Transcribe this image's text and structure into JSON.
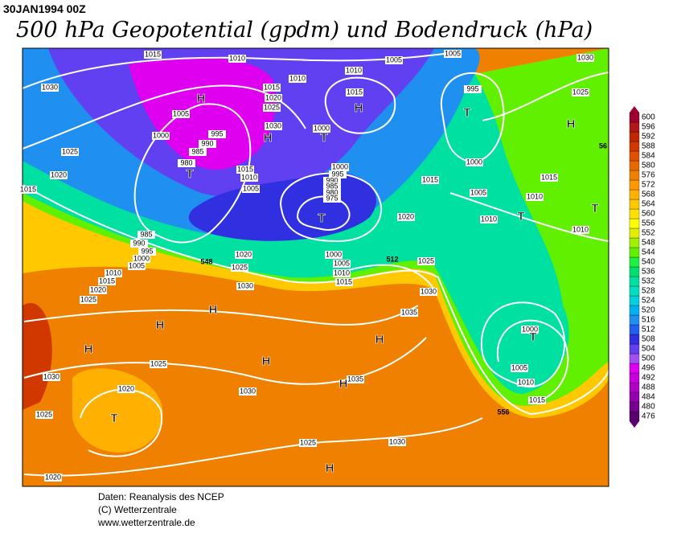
{
  "header": {
    "date": "30JAN1994 00Z",
    "title": "500 hPa Geopotential (gpdm) und Bodendruck (hPa)"
  },
  "map": {
    "isobar_labels": [
      1015,
      1010,
      1005,
      1005,
      1030,
      1010,
      1010,
      1030,
      1015,
      1020,
      1025,
      995,
      1025,
      1015,
      1005,
      1030,
      1000,
      995,
      1000,
      990,
      985,
      1025,
      980,
      1015,
      1010,
      1000,
      1000,
      1020,
      1015,
      995,
      990,
      985,
      980,
      975,
      1005,
      1015,
      1005,
      1010,
      1015,
      1020,
      1010,
      1010,
      985,
      990,
      995,
      1000,
      1005,
      1010,
      1015,
      1020,
      1025,
      1020,
      1025,
      1030,
      1000,
      1005,
      1010,
      1015,
      1025,
      1030,
      1035,
      1000,
      1005,
      1010,
      1015,
      1025,
      1030,
      1020,
      1030,
      1035,
      1025,
      1025,
      1030,
      1020
    ],
    "height_labels": [
      512,
      548,
      556,
      56
    ],
    "pressure_centers": [
      "H",
      "H",
      "T",
      "H",
      "T",
      "H",
      "T",
      "T",
      "T",
      "T",
      "H",
      "H",
      "H",
      "H",
      "T",
      "H",
      "H",
      "T",
      "H"
    ]
  },
  "colorbar": {
    "values": [
      476,
      480,
      484,
      488,
      492,
      496,
      500,
      504,
      508,
      512,
      516,
      520,
      524,
      528,
      532,
      536,
      540,
      544,
      548,
      552,
      556,
      560,
      564,
      568,
      572,
      576,
      580,
      584,
      588,
      592,
      596,
      600
    ],
    "colors": [
      "#5a0070",
      "#780090",
      "#9400b0",
      "#b000c8",
      "#c800e0",
      "#e000f0",
      "#a050f0",
      "#6040f0",
      "#3030e0",
      "#2060f0",
      "#2090f0",
      "#00b0f0",
      "#00d0e0",
      "#00e0c0",
      "#00e0a0",
      "#00e070",
      "#20f040",
      "#60f000",
      "#a0f000",
      "#e0f000",
      "#ffff00",
      "#ffe000",
      "#ffc800",
      "#ffb000",
      "#ff9800",
      "#f08000",
      "#e86800",
      "#e05000",
      "#d03800",
      "#c02800",
      "#b01818",
      "#a00030"
    ]
  },
  "footer": {
    "lines": [
      "Daten: Reanalysis des NCEP",
      "(C) Wetterzentrale",
      "www.wetterzentrale.de"
    ]
  }
}
